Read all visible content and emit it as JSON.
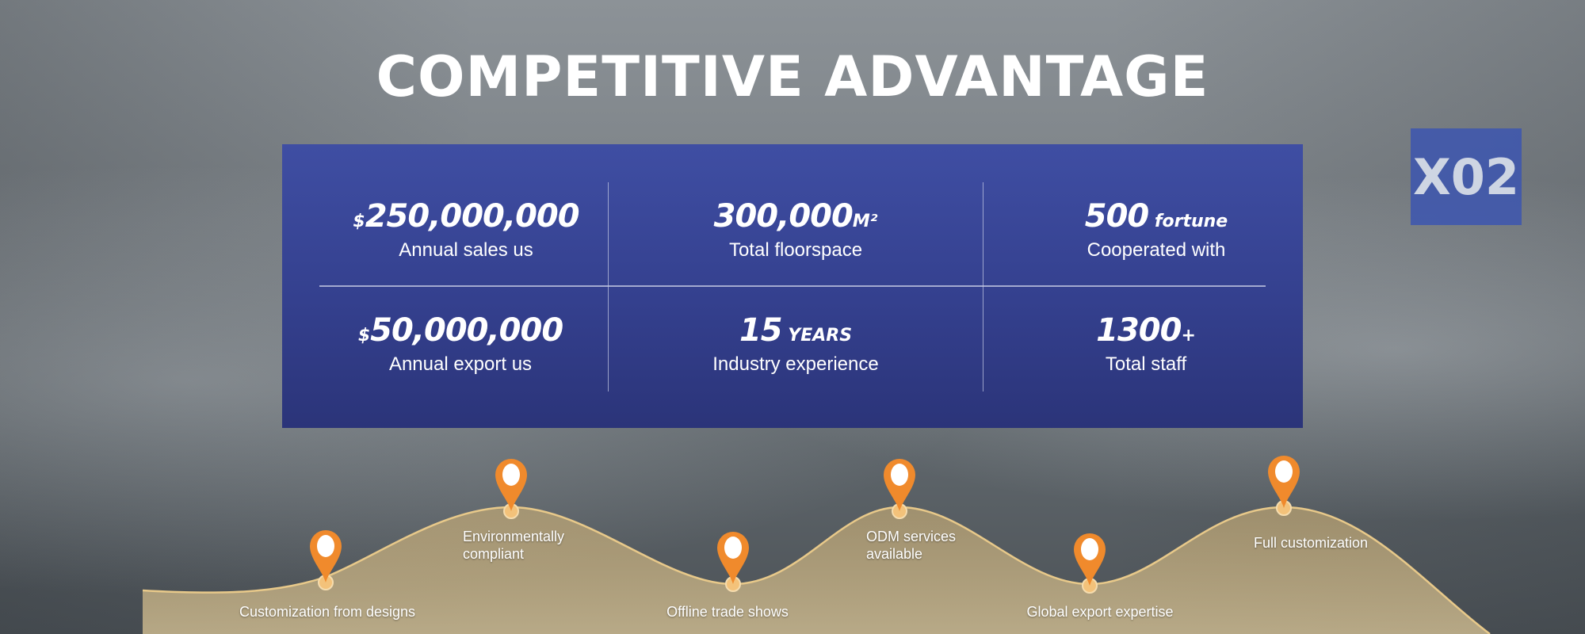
{
  "title": "COMPETITIVE ADVANTAGE",
  "background_sign": "X02",
  "stats": [
    {
      "prefix": "$",
      "value": "250,000,000",
      "suffix": "",
      "label": "Annual sales us"
    },
    {
      "prefix": "",
      "value": "300,000",
      "suffix": "M²",
      "label": "Total floorspace"
    },
    {
      "prefix": "",
      "value": "500",
      "suffix": " fortune",
      "label": "Cooperated with"
    },
    {
      "prefix": "$",
      "value": "50,000,000",
      "suffix": "",
      "label": "Annual export us"
    },
    {
      "prefix": "",
      "value": "15",
      "suffix": " YEARS",
      "label": "Industry experience"
    },
    {
      "prefix": "",
      "value": "1300",
      "suffix": "+",
      "label": "Total staff"
    }
  ],
  "advantages": [
    "Customization from designs",
    "Environmentally compliant",
    "Offline trade shows",
    "ODM services available",
    "Global export expertise",
    "Full customization"
  ],
  "colors": {
    "panel": "#3a4799",
    "pin": "#f08a2c",
    "wave": "#d9b877"
  },
  "icons": {
    "pin": "map-pin-icon"
  }
}
